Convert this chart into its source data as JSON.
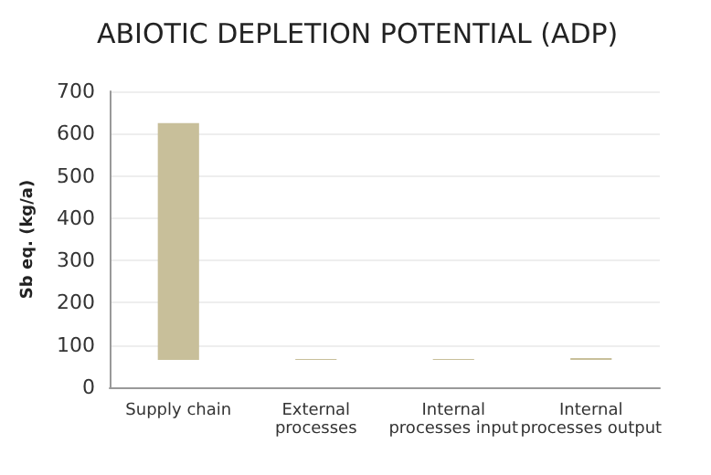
{
  "chart_data": {
    "type": "bar",
    "title": "ABIOTIC DEPLETION POTENTIAL (ADP)",
    "ylabel": "Sb eq. (kg/a)",
    "categories": [
      "Supply chain",
      "External\nprocesses",
      "Internal\nprocesses input",
      "Internal\nprocesses output"
    ],
    "values": [
      560,
      2,
      2,
      4
    ],
    "base": [
      65,
      65,
      65,
      65
    ],
    "color": "#c8bf9a",
    "ylim": [
      0,
      700
    ],
    "yticks": [
      0,
      100,
      200,
      300,
      400,
      500,
      600,
      700
    ],
    "grid": "y"
  }
}
